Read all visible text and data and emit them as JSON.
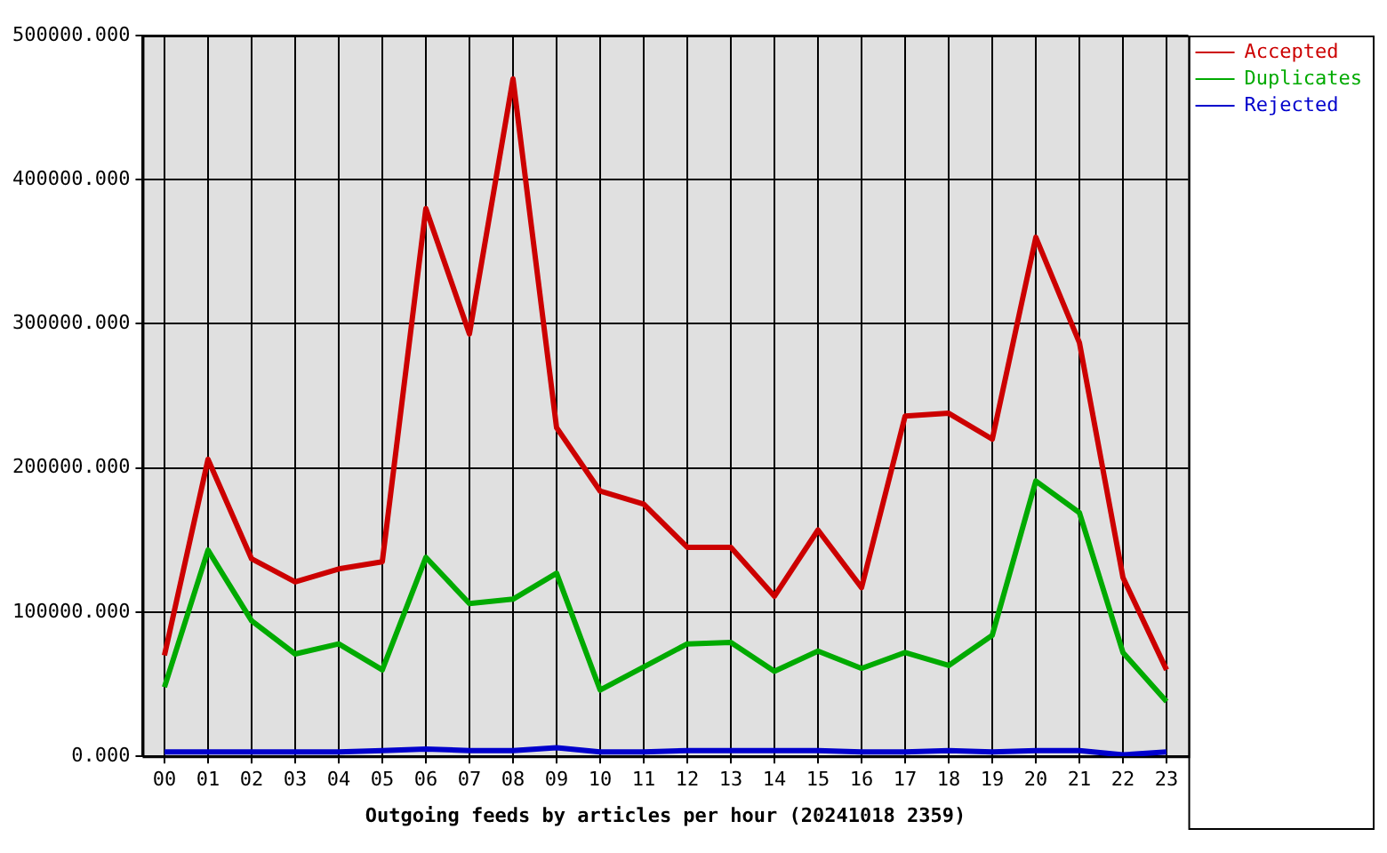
{
  "chart_data": {
    "type": "line",
    "xlabel": "Outgoing feeds by articles per hour (20241018 2359)",
    "categories": [
      "00",
      "01",
      "02",
      "03",
      "04",
      "05",
      "06",
      "07",
      "08",
      "09",
      "10",
      "11",
      "12",
      "13",
      "14",
      "15",
      "16",
      "17",
      "18",
      "19",
      "20",
      "21",
      "22",
      "23"
    ],
    "series": [
      {
        "name": "Accepted",
        "color": "#cc0000",
        "values": [
          70000,
          206000,
          137000,
          121000,
          130000,
          135000,
          380000,
          293000,
          470000,
          228000,
          184000,
          175000,
          145000,
          145000,
          111000,
          157000,
          117000,
          236000,
          238000,
          220000,
          360000,
          287000,
          124000,
          60000
        ]
      },
      {
        "name": "Duplicates",
        "color": "#00aa00",
        "values": [
          48000,
          143000,
          94000,
          71000,
          78000,
          60000,
          138000,
          106000,
          109000,
          127000,
          46000,
          62000,
          78000,
          79000,
          59000,
          73000,
          61000,
          72000,
          63000,
          84000,
          191000,
          169000,
          72000,
          38000
        ]
      },
      {
        "name": "Rejected",
        "color": "#0000cc",
        "values": [
          3000,
          3000,
          3000,
          3000,
          3000,
          4000,
          5000,
          4000,
          4000,
          6000,
          3000,
          3000,
          4000,
          4000,
          4000,
          4000,
          3000,
          3000,
          4000,
          3000,
          4000,
          4000,
          1000,
          3000
        ]
      }
    ],
    "ylim": [
      0,
      500000
    ],
    "yticks": [
      {
        "value": 0,
        "label": "0.000"
      },
      {
        "value": 100000,
        "label": "100000.000"
      },
      {
        "value": 200000,
        "label": "200000.000"
      },
      {
        "value": 300000,
        "label": "300000.000"
      },
      {
        "value": 400000,
        "label": "400000.000"
      },
      {
        "value": 500000,
        "label": "500000.000"
      }
    ],
    "grid": true,
    "legend": "top right"
  }
}
